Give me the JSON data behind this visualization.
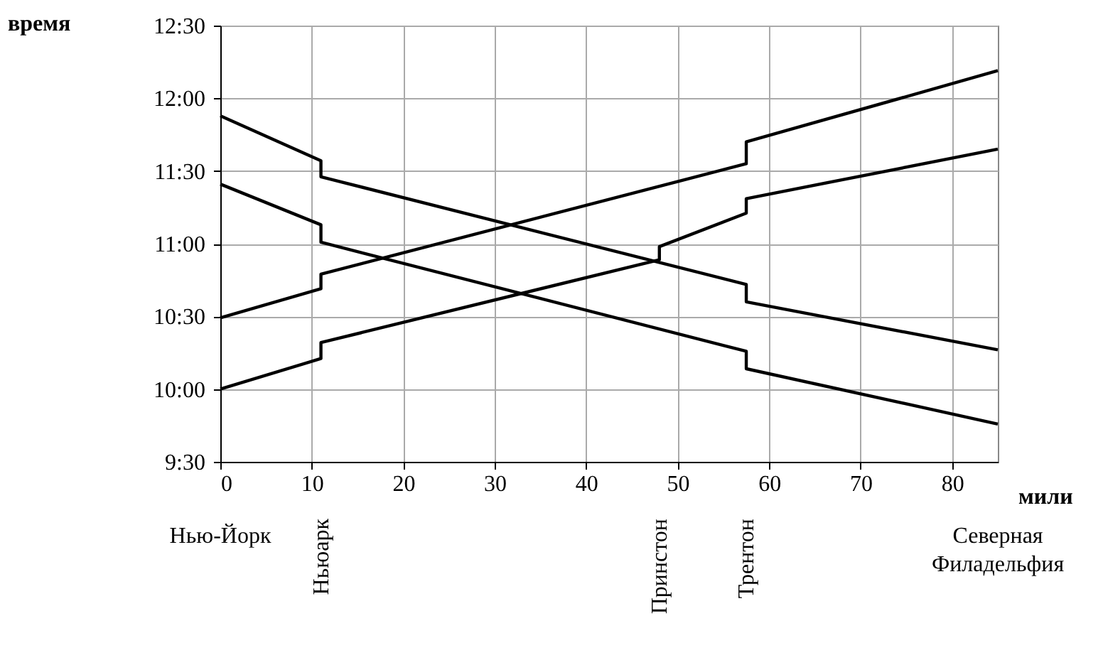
{
  "chart_data": {
    "type": "line",
    "xlabel": "мили",
    "ylabel": "время",
    "xlim": [
      0,
      85
    ],
    "xticks": [
      0,
      10,
      20,
      30,
      40,
      50,
      60,
      70,
      80
    ],
    "ylim": [
      9.5,
      12.5
    ],
    "yticks": [
      {
        "value": 9.5,
        "label": "9:30"
      },
      {
        "value": 10,
        "label": "10:00"
      },
      {
        "value": 10.5,
        "label": "10:30"
      },
      {
        "value": 11,
        "label": "11:00"
      },
      {
        "value": 11.5,
        "label": "11:30"
      },
      {
        "value": 12,
        "label": "12:00"
      },
      {
        "value": 12.5,
        "label": "12:30"
      }
    ],
    "grid": true,
    "marker": "none",
    "line_style": "solid",
    "series": [
      {
        "color": "#000000",
        "x": [
          0,
          11,
          11,
          57.5,
          57.5,
          85
        ],
        "values": [
          10.49,
          10.69,
          10.79,
          11.55,
          11.7,
          12.19
        ]
      },
      {
        "color": "#000000",
        "x": [
          0,
          11,
          11,
          48,
          48,
          57.5,
          57.5,
          85
        ],
        "values": [
          10.0,
          10.21,
          10.32,
          10.89,
          10.98,
          11.21,
          11.31,
          11.65
        ]
      },
      {
        "color": "#000000",
        "x": [
          0,
          11,
          11,
          57.5,
          57.5,
          85
        ],
        "values": [
          11.88,
          11.57,
          11.46,
          10.72,
          10.6,
          10.27
        ]
      },
      {
        "color": "#000000",
        "x": [
          0,
          11,
          11,
          57.5,
          57.5,
          85
        ],
        "values": [
          11.41,
          11.13,
          11.01,
          10.26,
          10.14,
          9.76
        ]
      }
    ],
    "annotations": [
      "Нью-Йорк",
      "Ньюарк",
      "Принстон",
      "Трентон",
      "Северная Филадельфия"
    ]
  }
}
